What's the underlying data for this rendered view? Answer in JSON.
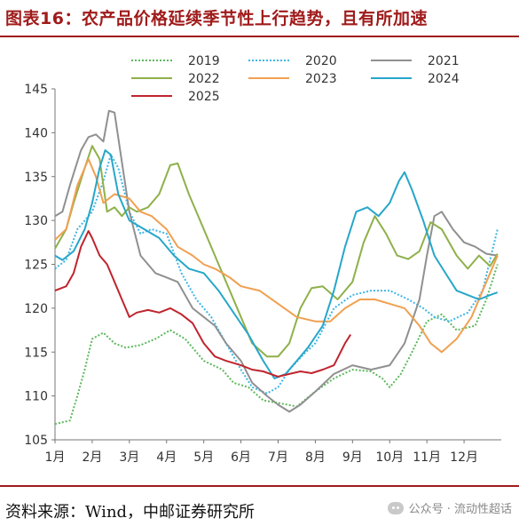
{
  "header": {
    "title": "图表16：农产品价格延续季节性上行趋势，且有所加速"
  },
  "footer": {
    "source": "资料来源：Wind，中邮证券研究所",
    "watermark": "公众号 · 流动性超话"
  },
  "chart_data": {
    "type": "line",
    "ylim": [
      105,
      145
    ],
    "yticks": [
      105,
      110,
      115,
      120,
      125,
      130,
      135,
      140,
      145
    ],
    "x_month_labels": [
      "1月",
      "2月",
      "3月",
      "4月",
      "5月",
      "6月",
      "7月",
      "8月",
      "9月",
      "10月",
      "11月",
      "12月"
    ],
    "xlim": [
      1,
      13
    ],
    "legend_position": "top",
    "series": [
      {
        "name": "2019",
        "color": "#5cb85c",
        "dash": "2,2",
        "points": [
          [
            1.0,
            106.8
          ],
          [
            1.4,
            107.2
          ],
          [
            1.6,
            110
          ],
          [
            1.8,
            113
          ],
          [
            2.0,
            116.5
          ],
          [
            2.3,
            117.2
          ],
          [
            2.6,
            116
          ],
          [
            2.9,
            115.5
          ],
          [
            3.3,
            115.8
          ],
          [
            3.7,
            116.5
          ],
          [
            4.1,
            117.5
          ],
          [
            4.5,
            116.5
          ],
          [
            5.0,
            114
          ],
          [
            5.5,
            113
          ],
          [
            5.8,
            111.5
          ],
          [
            6.2,
            111
          ],
          [
            6.6,
            109.5
          ],
          [
            7.0,
            109.2
          ],
          [
            7.5,
            108.8
          ],
          [
            8.0,
            110.5
          ],
          [
            8.5,
            112
          ],
          [
            9.0,
            113
          ],
          [
            9.5,
            112.8
          ],
          [
            9.8,
            112
          ],
          [
            10.0,
            111
          ],
          [
            10.3,
            112.5
          ],
          [
            10.6,
            115
          ],
          [
            11.0,
            118.5
          ],
          [
            11.4,
            119.3
          ],
          [
            11.8,
            117.5
          ],
          [
            12.3,
            118
          ],
          [
            12.6,
            121
          ],
          [
            12.9,
            125
          ]
        ]
      },
      {
        "name": "2020",
        "color": "#3fb5e6",
        "dash": "2,2",
        "points": [
          [
            1.0,
            124.5
          ],
          [
            1.3,
            125.5
          ],
          [
            1.6,
            129
          ],
          [
            2.0,
            131
          ],
          [
            2.3,
            134.5
          ],
          [
            2.5,
            137.5
          ],
          [
            2.7,
            136
          ],
          [
            3.0,
            131
          ],
          [
            3.3,
            128.5
          ],
          [
            3.6,
            129
          ],
          [
            4.0,
            128.5
          ],
          [
            4.4,
            124
          ],
          [
            4.8,
            121
          ],
          [
            5.2,
            119
          ],
          [
            5.6,
            116
          ],
          [
            6.0,
            113
          ],
          [
            6.3,
            111
          ],
          [
            6.7,
            110.3
          ],
          [
            7.0,
            111
          ],
          [
            7.3,
            113
          ],
          [
            7.7,
            114.8
          ],
          [
            8.0,
            116
          ],
          [
            8.5,
            120
          ],
          [
            9.0,
            121.5
          ],
          [
            9.5,
            122
          ],
          [
            10.0,
            122
          ],
          [
            10.5,
            121
          ],
          [
            10.9,
            120
          ],
          [
            11.2,
            119
          ],
          [
            11.6,
            118.5
          ],
          [
            12.1,
            119.5
          ],
          [
            12.5,
            122
          ],
          [
            12.9,
            129
          ]
        ]
      },
      {
        "name": "2021",
        "color": "#909090",
        "dash": "",
        "points": [
          [
            1.0,
            130.5
          ],
          [
            1.2,
            131
          ],
          [
            1.4,
            134
          ],
          [
            1.7,
            138
          ],
          [
            1.9,
            139.5
          ],
          [
            2.1,
            139.8
          ],
          [
            2.3,
            139
          ],
          [
            2.45,
            142.5
          ],
          [
            2.6,
            142.3
          ],
          [
            2.75,
            138
          ],
          [
            3.0,
            131
          ],
          [
            3.3,
            126
          ],
          [
            3.7,
            124
          ],
          [
            4.0,
            123.5
          ],
          [
            4.3,
            123
          ],
          [
            4.7,
            120
          ],
          [
            5.0,
            119
          ],
          [
            5.3,
            118
          ],
          [
            5.6,
            116
          ],
          [
            6.0,
            114
          ],
          [
            6.3,
            111.5
          ],
          [
            6.7,
            110
          ],
          [
            7.0,
            109
          ],
          [
            7.3,
            108.2
          ],
          [
            7.6,
            109
          ],
          [
            8.0,
            110.5
          ],
          [
            8.5,
            112.5
          ],
          [
            9.0,
            113.5
          ],
          [
            9.5,
            113
          ],
          [
            10.0,
            113.5
          ],
          [
            10.4,
            116
          ],
          [
            10.8,
            121
          ],
          [
            11.0,
            126
          ],
          [
            11.2,
            130.5
          ],
          [
            11.4,
            131
          ],
          [
            11.7,
            129
          ],
          [
            12.0,
            127.5
          ],
          [
            12.3,
            127
          ],
          [
            12.6,
            126.2
          ],
          [
            12.9,
            126
          ]
        ]
      },
      {
        "name": "2022",
        "color": "#8fb04a",
        "dash": "",
        "points": [
          [
            1.0,
            126.8
          ],
          [
            1.3,
            129
          ],
          [
            1.5,
            132
          ],
          [
            1.8,
            136
          ],
          [
            2.0,
            138.5
          ],
          [
            2.2,
            137
          ],
          [
            2.4,
            131
          ],
          [
            2.6,
            131.5
          ],
          [
            2.8,
            130.5
          ],
          [
            3.0,
            131.5
          ],
          [
            3.2,
            131
          ],
          [
            3.5,
            131.5
          ],
          [
            3.8,
            133
          ],
          [
            4.1,
            136.3
          ],
          [
            4.3,
            136.5
          ],
          [
            4.6,
            133
          ],
          [
            5.0,
            129
          ],
          [
            5.4,
            125
          ],
          [
            5.7,
            122
          ],
          [
            6.0,
            119
          ],
          [
            6.3,
            116
          ],
          [
            6.7,
            114.5
          ],
          [
            7.0,
            114.5
          ],
          [
            7.3,
            116
          ],
          [
            7.6,
            120
          ],
          [
            7.9,
            122.3
          ],
          [
            8.2,
            122.5
          ],
          [
            8.6,
            121
          ],
          [
            9.0,
            123
          ],
          [
            9.3,
            127.5
          ],
          [
            9.6,
            130.5
          ],
          [
            9.9,
            128.5
          ],
          [
            10.2,
            126
          ],
          [
            10.5,
            125.6
          ],
          [
            10.8,
            126.5
          ],
          [
            11.1,
            129.8
          ],
          [
            11.4,
            129
          ],
          [
            11.8,
            126
          ],
          [
            12.1,
            124.5
          ],
          [
            12.4,
            126
          ],
          [
            12.7,
            124.8
          ],
          [
            12.9,
            126.2
          ]
        ]
      },
      {
        "name": "2023",
        "color": "#f0a050",
        "dash": "",
        "points": [
          [
            1.0,
            127.8
          ],
          [
            1.3,
            129
          ],
          [
            1.6,
            134
          ],
          [
            1.9,
            137
          ],
          [
            2.1,
            135
          ],
          [
            2.3,
            132
          ],
          [
            2.6,
            133
          ],
          [
            3.0,
            132.5
          ],
          [
            3.3,
            131
          ],
          [
            3.6,
            130.5
          ],
          [
            4.0,
            129
          ],
          [
            4.3,
            127
          ],
          [
            4.7,
            126
          ],
          [
            5.0,
            125
          ],
          [
            5.3,
            124.5
          ],
          [
            5.7,
            123.5
          ],
          [
            6.0,
            122.5
          ],
          [
            6.5,
            122
          ],
          [
            7.0,
            120.5
          ],
          [
            7.5,
            119
          ],
          [
            8.0,
            118.5
          ],
          [
            8.4,
            118.5
          ],
          [
            8.8,
            120
          ],
          [
            9.2,
            121
          ],
          [
            9.6,
            121
          ],
          [
            10.0,
            120.5
          ],
          [
            10.4,
            120
          ],
          [
            10.8,
            118
          ],
          [
            11.1,
            116
          ],
          [
            11.4,
            115
          ],
          [
            11.8,
            116.5
          ],
          [
            12.2,
            119
          ],
          [
            12.6,
            123
          ],
          [
            12.9,
            126
          ]
        ]
      },
      {
        "name": "2024",
        "color": "#27a6c9",
        "dash": "",
        "points": [
          [
            1.0,
            126
          ],
          [
            1.2,
            125.5
          ],
          [
            1.5,
            126.5
          ],
          [
            1.8,
            129
          ],
          [
            2.0,
            132
          ],
          [
            2.2,
            136
          ],
          [
            2.35,
            138
          ],
          [
            2.5,
            137.5
          ],
          [
            2.7,
            133
          ],
          [
            3.0,
            130
          ],
          [
            3.4,
            129
          ],
          [
            3.8,
            128
          ],
          [
            4.2,
            126
          ],
          [
            4.6,
            124.5
          ],
          [
            5.0,
            124
          ],
          [
            5.4,
            122
          ],
          [
            5.8,
            119.5
          ],
          [
            6.2,
            117
          ],
          [
            6.6,
            114
          ],
          [
            6.9,
            112
          ],
          [
            7.2,
            112.5
          ],
          [
            7.5,
            114
          ],
          [
            7.8,
            115.5
          ],
          [
            8.2,
            118
          ],
          [
            8.5,
            122
          ],
          [
            8.8,
            127
          ],
          [
            9.1,
            131
          ],
          [
            9.4,
            131.5
          ],
          [
            9.7,
            130.5
          ],
          [
            10.0,
            132
          ],
          [
            10.25,
            134.5
          ],
          [
            10.4,
            135.5
          ],
          [
            10.6,
            133.5
          ],
          [
            10.9,
            130
          ],
          [
            11.2,
            126
          ],
          [
            11.5,
            124
          ],
          [
            11.8,
            122
          ],
          [
            12.1,
            121.5
          ],
          [
            12.4,
            121
          ],
          [
            12.7,
            121.5
          ],
          [
            12.9,
            121.8
          ]
        ]
      },
      {
        "name": "2025",
        "color": "#c0242e",
        "dash": "",
        "points": [
          [
            1.0,
            122
          ],
          [
            1.3,
            122.5
          ],
          [
            1.5,
            124
          ],
          [
            1.7,
            127
          ],
          [
            1.9,
            128.8
          ],
          [
            2.0,
            128
          ],
          [
            2.2,
            126
          ],
          [
            2.4,
            125
          ],
          [
            2.6,
            123
          ],
          [
            2.8,
            121
          ],
          [
            3.0,
            119
          ],
          [
            3.2,
            119.5
          ],
          [
            3.5,
            119.8
          ],
          [
            3.8,
            119.5
          ],
          [
            4.1,
            120
          ],
          [
            4.4,
            119.3
          ],
          [
            4.7,
            118.3
          ],
          [
            5.0,
            116
          ],
          [
            5.3,
            114.5
          ],
          [
            5.6,
            114
          ],
          [
            6.0,
            113.5
          ],
          [
            6.3,
            113
          ],
          [
            6.6,
            112.8
          ],
          [
            7.0,
            112.2
          ],
          [
            7.3,
            112.5
          ],
          [
            7.6,
            112.8
          ],
          [
            7.9,
            112.6
          ],
          [
            8.2,
            113
          ],
          [
            8.5,
            113.5
          ],
          [
            8.8,
            116
          ],
          [
            8.95,
            117
          ]
        ]
      }
    ]
  }
}
